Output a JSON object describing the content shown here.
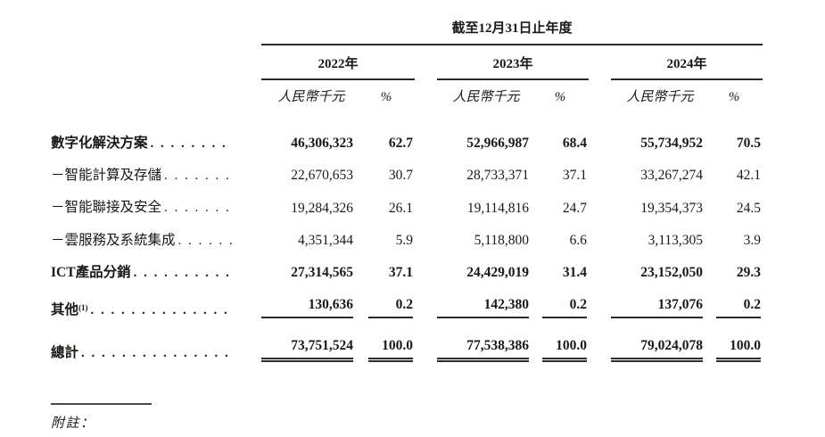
{
  "table": {
    "period_header": "截至12月31日止年度",
    "years": [
      "2022年",
      "2023年",
      "2024年"
    ],
    "unit_header": "人民幣千元",
    "percent_header": "%",
    "rows": [
      {
        "label": "數字化解決方案",
        "sup": "",
        "values": [
          "46,306,323",
          "62.7",
          "52,966,987",
          "68.4",
          "55,734,952",
          "70.5"
        ]
      },
      {
        "label": "－智能計算及存儲",
        "sup": "",
        "values": [
          "22,670,653",
          "30.7",
          "28,733,371",
          "37.1",
          "33,267,274",
          "42.1"
        ]
      },
      {
        "label": "－智能聯接及安全",
        "sup": "",
        "values": [
          "19,284,326",
          "26.1",
          "19,114,816",
          "24.7",
          "19,354,373",
          "24.5"
        ]
      },
      {
        "label": "－雲服務及系統集成",
        "sup": "",
        "values": [
          "4,351,344",
          "5.9",
          "5,118,800",
          "6.6",
          "3,113,305",
          "3.9"
        ]
      },
      {
        "label": "ICT產品分銷",
        "sup": "",
        "values": [
          "27,314,565",
          "37.1",
          "24,429,019",
          "31.4",
          "23,152,050",
          "29.3"
        ]
      },
      {
        "label": "其他",
        "sup": "(1)",
        "values": [
          "130,636",
          "0.2",
          "142,380",
          "0.2",
          "137,076",
          "0.2"
        ]
      },
      {
        "label": "總計",
        "sup": "",
        "values": [
          "73,751,524",
          "100.0",
          "77,538,386",
          "100.0",
          "79,024,078",
          "100.0"
        ]
      }
    ],
    "footnote_label": "附註："
  }
}
